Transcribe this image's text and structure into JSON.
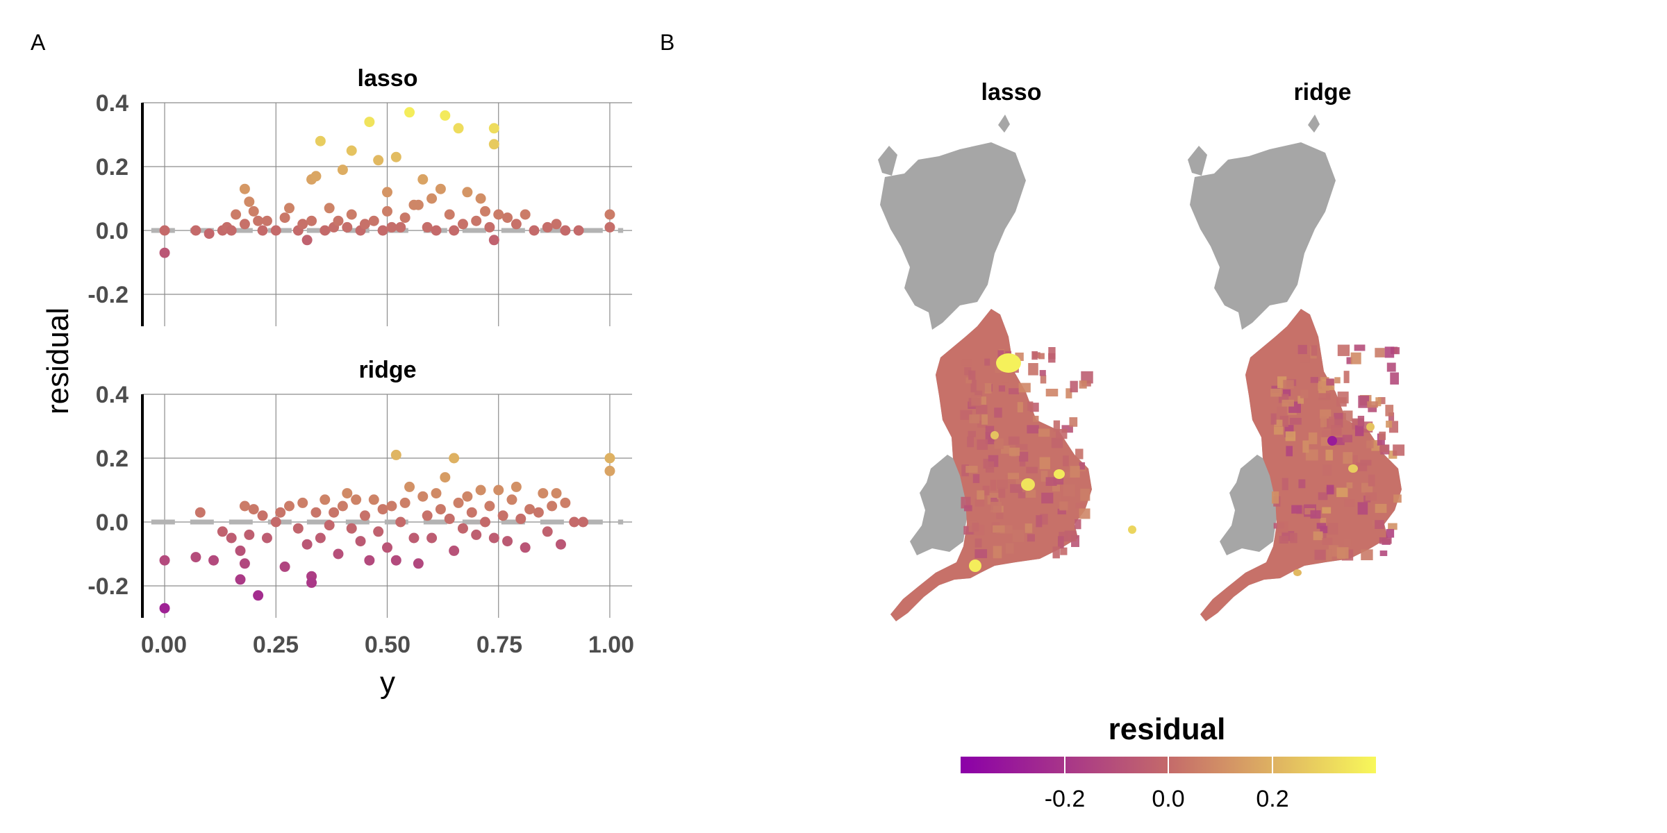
{
  "panels": {
    "a_letter": "A",
    "b_letter": "B"
  },
  "colors": {
    "low": "#8b00a8",
    "mid": "#c46a6a",
    "high": "#f8f85a",
    "region_gray": "#a6a6a6",
    "zero_band": "#b3b3b3"
  },
  "chart_data": [
    {
      "type": "scatter",
      "panel": "A",
      "xlabel": "y",
      "ylabel": "residual",
      "xlim": [
        -0.05,
        1.05
      ],
      "ylim": [
        -0.3,
        0.4
      ],
      "x_ticks": [
        0,
        0.25,
        0.5,
        0.75,
        1
      ],
      "x_tick_labels": [
        "0.00",
        "0.25",
        "0.50",
        "0.75",
        "1.00"
      ],
      "y_ticks": [
        -0.2,
        0,
        0.2,
        0.4
      ],
      "y_tick_labels": [
        "-0.2",
        "0.0",
        "0.2",
        "0.4"
      ],
      "grid": true,
      "color_by": "residual",
      "facets": [
        {
          "name": "lasso",
          "points": [
            [
              0.0,
              0.0
            ],
            [
              0.0,
              -0.07
            ],
            [
              0.07,
              0.0
            ],
            [
              0.1,
              -0.01
            ],
            [
              0.13,
              0.0
            ],
            [
              0.14,
              0.01
            ],
            [
              0.15,
              0.0
            ],
            [
              0.16,
              0.05
            ],
            [
              0.18,
              0.02
            ],
            [
              0.18,
              0.13
            ],
            [
              0.19,
              0.09
            ],
            [
              0.2,
              0.06
            ],
            [
              0.21,
              0.03
            ],
            [
              0.22,
              0.0
            ],
            [
              0.23,
              0.03
            ],
            [
              0.25,
              0.0
            ],
            [
              0.27,
              0.04
            ],
            [
              0.28,
              0.07
            ],
            [
              0.3,
              0.0
            ],
            [
              0.31,
              0.02
            ],
            [
              0.32,
              -0.03
            ],
            [
              0.33,
              0.03
            ],
            [
              0.33,
              0.16
            ],
            [
              0.34,
              0.17
            ],
            [
              0.35,
              0.28
            ],
            [
              0.36,
              0.0
            ],
            [
              0.37,
              0.07
            ],
            [
              0.38,
              0.01
            ],
            [
              0.39,
              0.03
            ],
            [
              0.4,
              0.19
            ],
            [
              0.41,
              0.01
            ],
            [
              0.42,
              0.05
            ],
            [
              0.42,
              0.25
            ],
            [
              0.44,
              0.0
            ],
            [
              0.45,
              0.02
            ],
            [
              0.46,
              0.34
            ],
            [
              0.47,
              0.03
            ],
            [
              0.48,
              0.22
            ],
            [
              0.49,
              0.0
            ],
            [
              0.5,
              0.12
            ],
            [
              0.5,
              0.06
            ],
            [
              0.51,
              0.01
            ],
            [
              0.52,
              0.23
            ],
            [
              0.53,
              0.01
            ],
            [
              0.54,
              0.04
            ],
            [
              0.55,
              0.37
            ],
            [
              0.56,
              0.08
            ],
            [
              0.57,
              0.08
            ],
            [
              0.58,
              0.16
            ],
            [
              0.59,
              0.01
            ],
            [
              0.6,
              0.1
            ],
            [
              0.61,
              0.0
            ],
            [
              0.62,
              0.13
            ],
            [
              0.63,
              0.36
            ],
            [
              0.64,
              0.05
            ],
            [
              0.65,
              0.0
            ],
            [
              0.66,
              0.32
            ],
            [
              0.67,
              0.02
            ],
            [
              0.68,
              0.12
            ],
            [
              0.7,
              0.03
            ],
            [
              0.71,
              0.1
            ],
            [
              0.72,
              0.06
            ],
            [
              0.73,
              0.01
            ],
            [
              0.74,
              -0.03
            ],
            [
              0.74,
              0.32
            ],
            [
              0.74,
              0.27
            ],
            [
              0.75,
              0.05
            ],
            [
              0.77,
              0.04
            ],
            [
              0.79,
              0.02
            ],
            [
              0.81,
              0.05
            ],
            [
              0.83,
              0.0
            ],
            [
              0.86,
              0.01
            ],
            [
              0.88,
              0.02
            ],
            [
              0.9,
              0.0
            ],
            [
              0.93,
              0.0
            ],
            [
              1.0,
              0.05
            ],
            [
              1.0,
              0.01
            ]
          ]
        },
        {
          "name": "ridge",
          "points": [
            [
              0.0,
              -0.27
            ],
            [
              0.0,
              -0.12
            ],
            [
              0.07,
              -0.11
            ],
            [
              0.08,
              0.03
            ],
            [
              0.11,
              -0.12
            ],
            [
              0.13,
              -0.03
            ],
            [
              0.15,
              -0.05
            ],
            [
              0.17,
              -0.09
            ],
            [
              0.17,
              -0.18
            ],
            [
              0.18,
              0.05
            ],
            [
              0.18,
              -0.13
            ],
            [
              0.19,
              -0.04
            ],
            [
              0.2,
              0.04
            ],
            [
              0.21,
              -0.23
            ],
            [
              0.22,
              0.02
            ],
            [
              0.23,
              -0.05
            ],
            [
              0.25,
              0.0
            ],
            [
              0.26,
              0.03
            ],
            [
              0.27,
              -0.14
            ],
            [
              0.28,
              0.05
            ],
            [
              0.3,
              -0.02
            ],
            [
              0.31,
              0.06
            ],
            [
              0.32,
              -0.07
            ],
            [
              0.33,
              -0.17
            ],
            [
              0.33,
              -0.19
            ],
            [
              0.34,
              0.03
            ],
            [
              0.35,
              -0.05
            ],
            [
              0.36,
              0.07
            ],
            [
              0.37,
              -0.01
            ],
            [
              0.38,
              0.03
            ],
            [
              0.39,
              -0.1
            ],
            [
              0.4,
              0.05
            ],
            [
              0.41,
              0.09
            ],
            [
              0.42,
              -0.02
            ],
            [
              0.43,
              0.07
            ],
            [
              0.44,
              -0.06
            ],
            [
              0.45,
              0.02
            ],
            [
              0.46,
              -0.12
            ],
            [
              0.47,
              0.07
            ],
            [
              0.48,
              -0.03
            ],
            [
              0.49,
              0.04
            ],
            [
              0.5,
              -0.08
            ],
            [
              0.51,
              0.05
            ],
            [
              0.52,
              0.21
            ],
            [
              0.52,
              -0.12
            ],
            [
              0.53,
              0.0
            ],
            [
              0.54,
              0.06
            ],
            [
              0.55,
              0.11
            ],
            [
              0.56,
              -0.05
            ],
            [
              0.57,
              -0.13
            ],
            [
              0.58,
              0.08
            ],
            [
              0.59,
              0.02
            ],
            [
              0.6,
              -0.05
            ],
            [
              0.61,
              0.09
            ],
            [
              0.62,
              0.04
            ],
            [
              0.63,
              0.14
            ],
            [
              0.64,
              0.01
            ],
            [
              0.65,
              0.2
            ],
            [
              0.65,
              -0.09
            ],
            [
              0.66,
              0.06
            ],
            [
              0.67,
              -0.02
            ],
            [
              0.68,
              0.08
            ],
            [
              0.69,
              0.03
            ],
            [
              0.7,
              -0.04
            ],
            [
              0.71,
              0.1
            ],
            [
              0.72,
              0.0
            ],
            [
              0.73,
              0.05
            ],
            [
              0.74,
              -0.05
            ],
            [
              0.75,
              0.1
            ],
            [
              0.76,
              0.02
            ],
            [
              0.77,
              -0.06
            ],
            [
              0.78,
              0.07
            ],
            [
              0.79,
              0.11
            ],
            [
              0.8,
              0.01
            ],
            [
              0.81,
              -0.08
            ],
            [
              0.82,
              0.04
            ],
            [
              0.84,
              0.03
            ],
            [
              0.85,
              0.09
            ],
            [
              0.86,
              -0.03
            ],
            [
              0.87,
              0.05
            ],
            [
              0.88,
              0.09
            ],
            [
              0.89,
              -0.07
            ],
            [
              0.9,
              0.06
            ],
            [
              0.92,
              0.0
            ],
            [
              0.94,
              0.0
            ],
            [
              1.0,
              0.2
            ],
            [
              1.0,
              0.16
            ]
          ]
        }
      ]
    },
    {
      "type": "heatmap",
      "panel": "B",
      "subtype": "choropleth",
      "facets": [
        {
          "name": "lasso"
        },
        {
          "name": "ridge"
        }
      ],
      "legend": {
        "title": "residual",
        "ticks": [
          -0.2,
          0,
          0.2
        ],
        "tick_labels": [
          "-0.2",
          "0.0",
          "0.2"
        ],
        "range": [
          -0.4,
          0.4
        ],
        "placement": "bottom"
      }
    }
  ]
}
